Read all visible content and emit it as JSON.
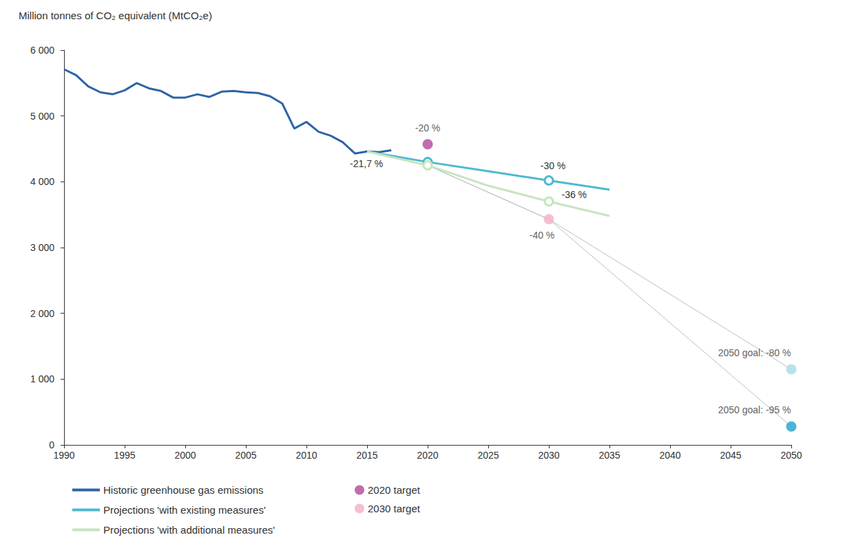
{
  "chart_data": {
    "type": "line",
    "y_label": "Million tonnes of CO₂ equivalent (MtCO₂e)",
    "xlim": [
      1990,
      2050
    ],
    "xticks": [
      1990,
      1995,
      2000,
      2005,
      2010,
      2015,
      2020,
      2025,
      2030,
      2035,
      2040,
      2045,
      2050
    ],
    "ylim": [
      0,
      6000
    ],
    "yticks": [
      0,
      {
        "value": 1000,
        "label": "1 000"
      },
      {
        "value": 2000,
        "label": "2 000"
      },
      {
        "value": 3000,
        "label": "3 000"
      },
      {
        "value": 4000,
        "label": "4 000"
      },
      {
        "value": 5000,
        "label": "5 000"
      },
      {
        "value": 6000,
        "label": "6 000"
      }
    ],
    "grid": false,
    "legend": "bottom-left",
    "series": [
      {
        "name": "Historic greenhouse gas emissions",
        "type": "line",
        "color": "#2d63a6",
        "marker": "none",
        "line_style": "solid",
        "x": [
          1990,
          1991,
          1992,
          1993,
          1994,
          1995,
          1996,
          1997,
          1998,
          1999,
          2000,
          2001,
          2002,
          2003,
          2004,
          2005,
          2006,
          2007,
          2008,
          2009,
          2010,
          2011,
          2012,
          2013,
          2014,
          2015,
          2016,
          2017
        ],
        "values": [
          5710,
          5620,
          5450,
          5360,
          5330,
          5390,
          5500,
          5420,
          5380,
          5280,
          5280,
          5330,
          5290,
          5370,
          5380,
          5360,
          5350,
          5300,
          5190,
          4810,
          4910,
          4760,
          4700,
          4600,
          4430,
          4460,
          4450,
          4480
        ],
        "point_labels": [
          null,
          null,
          null,
          null,
          null,
          null,
          null,
          null,
          null,
          null,
          null,
          null,
          null,
          null,
          null,
          null,
          null,
          null,
          null,
          null,
          null,
          null,
          null,
          null,
          null,
          null,
          null,
          "-21,7 %"
        ]
      },
      {
        "name": "Projections 'with existing measures'",
        "type": "line",
        "color": "#4db9d1",
        "marker": "open_circle",
        "line_style": "solid",
        "x": [
          2015,
          2020,
          2025,
          2030,
          2035
        ],
        "values": [
          4460,
          4300,
          4160,
          4020,
          3880
        ],
        "point_labels": [
          null,
          null,
          null,
          "-30 %",
          null
        ]
      },
      {
        "name": "Projections 'with additional measures'",
        "type": "line",
        "color": "#c5e5bf",
        "marker": "open_circle",
        "line_style": "solid",
        "x": [
          2015,
          2020,
          2025,
          2030,
          2035
        ],
        "values": [
          4460,
          4250,
          3940,
          3700,
          3480
        ],
        "point_labels": [
          null,
          null,
          null,
          "-36 %",
          null
        ]
      },
      {
        "name": "2020 target",
        "type": "scatter",
        "color": "#b0479a",
        "marker": "circle",
        "x": [
          2020
        ],
        "values": [
          4570
        ],
        "point_labels": [
          "-20 %"
        ]
      },
      {
        "name": "2030 target",
        "type": "scatter",
        "color": "#f4afc3",
        "marker": "circle",
        "x": [
          2030
        ],
        "values": [
          3430
        ],
        "point_labels": [
          "-40 %"
        ]
      },
      {
        "type": "scatter",
        "color": "#a8dbe6",
        "marker": "circle",
        "x": [
          2050
        ],
        "values": [
          1150
        ],
        "point_labels": [
          "2050 goal: -80 %"
        ]
      },
      {
        "type": "scatter",
        "color": "#1fa3c9",
        "marker": "circle",
        "x": [
          2050
        ],
        "values": [
          280
        ],
        "point_labels": [
          "2050 goal: -95 %"
        ]
      },
      {
        "type": "line",
        "color": "#bdbdbd",
        "marker": "none",
        "line_style": "solid",
        "x": [
          2020,
          2030,
          2050
        ],
        "values": [
          4250,
          3430,
          1150
        ]
      },
      {
        "type": "line",
        "color": "#bdbdbd",
        "marker": "none",
        "line_style": "solid",
        "x": [
          2020,
          2030,
          2050
        ],
        "values": [
          4250,
          3430,
          280
        ]
      }
    ]
  }
}
